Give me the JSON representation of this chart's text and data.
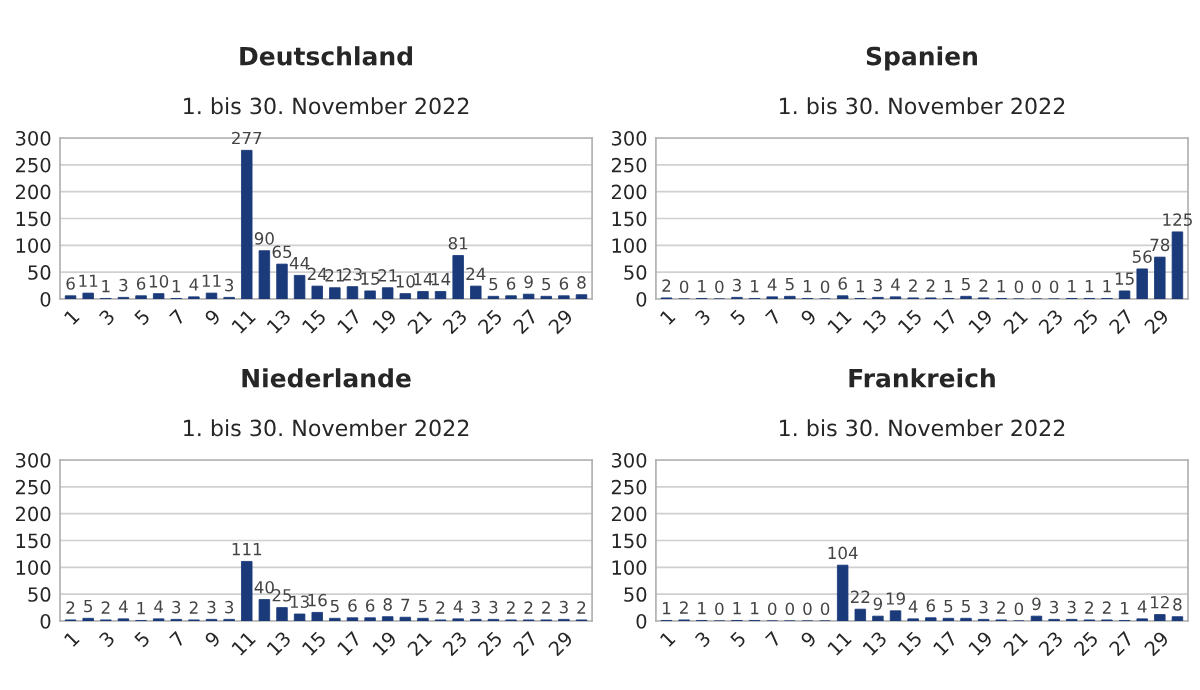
{
  "chart_data": [
    {
      "type": "bar",
      "title": "Deutschland",
      "subtitle": "1. bis 30. November 2022",
      "categories": [
        "1",
        null,
        "3",
        null,
        "5",
        null,
        "7",
        null,
        "9",
        null,
        "11",
        null,
        "13",
        null,
        "15",
        null,
        "17",
        null,
        "19",
        null,
        "21",
        null,
        "23",
        null,
        "25",
        null,
        "27",
        null,
        "29",
        null
      ],
      "values": [
        6,
        11,
        1,
        3,
        6,
        10,
        1,
        4,
        11,
        3,
        277,
        90,
        65,
        44,
        24,
        21,
        23,
        15,
        21,
        10,
        14,
        14,
        81,
        24,
        5,
        6,
        9,
        5,
        6,
        8
      ],
      "color": "#1a3a7a",
      "ylim": [
        0,
        300
      ],
      "yticks": [
        0,
        50,
        100,
        150,
        200,
        250,
        300
      ],
      "grid": "y",
      "data_labels": true
    },
    {
      "type": "bar",
      "title": "Spanien",
      "subtitle": "1. bis 30. November 2022",
      "categories": [
        "1",
        null,
        "3",
        null,
        "5",
        null,
        "7",
        null,
        "9",
        null,
        "11",
        null,
        "13",
        null,
        "15",
        null,
        "17",
        null,
        "19",
        null,
        "21",
        null,
        "23",
        null,
        "25",
        null,
        "27",
        null,
        "29",
        null
      ],
      "values": [
        2,
        0,
        1,
        0,
        3,
        1,
        4,
        5,
        1,
        0,
        6,
        1,
        3,
        4,
        2,
        2,
        1,
        5,
        2,
        1,
        0,
        0,
        0,
        1,
        1,
        1,
        15,
        56,
        78,
        125
      ],
      "color": "#1a3a7a",
      "ylim": [
        0,
        300
      ],
      "yticks": [
        0,
        50,
        100,
        150,
        200,
        250,
        300
      ],
      "grid": "y",
      "data_labels": true
    },
    {
      "type": "bar",
      "title": "Niederlande",
      "subtitle": "1. bis 30. November 2022",
      "categories": [
        "1",
        null,
        "3",
        null,
        "5",
        null,
        "7",
        null,
        "9",
        null,
        "11",
        null,
        "13",
        null,
        "15",
        null,
        "17",
        null,
        "19",
        null,
        "21",
        null,
        "23",
        null,
        "25",
        null,
        "27",
        null,
        "29",
        null
      ],
      "values": [
        2,
        5,
        2,
        4,
        1,
        4,
        3,
        2,
        3,
        3,
        111,
        40,
        25,
        13,
        16,
        5,
        6,
        6,
        8,
        7,
        5,
        2,
        4,
        3,
        3,
        2,
        2,
        2,
        3,
        2
      ],
      "color": "#1a3a7a",
      "ylim": [
        0,
        300
      ],
      "yticks": [
        0,
        50,
        100,
        150,
        200,
        250,
        300
      ],
      "grid": "y",
      "data_labels": true
    },
    {
      "type": "bar",
      "title": "Frankreich",
      "subtitle": "1. bis 30. November 2022",
      "categories": [
        "1",
        null,
        "3",
        null,
        "5",
        null,
        "7",
        null,
        "9",
        null,
        "11",
        null,
        "13",
        null,
        "15",
        null,
        "17",
        null,
        "19",
        null,
        "21",
        null,
        "23",
        null,
        "25",
        null,
        "27",
        null,
        "29",
        null
      ],
      "values": [
        1,
        2,
        1,
        0,
        1,
        1,
        0,
        0,
        0,
        0,
        104,
        22,
        9,
        19,
        4,
        6,
        5,
        5,
        3,
        2,
        0,
        9,
        3,
        3,
        2,
        2,
        1,
        4,
        12,
        8
      ],
      "color": "#1a3a7a",
      "ylim": [
        0,
        300
      ],
      "yticks": [
        0,
        50,
        100,
        150,
        200,
        250,
        300
      ],
      "grid": "y",
      "data_labels": true
    }
  ]
}
